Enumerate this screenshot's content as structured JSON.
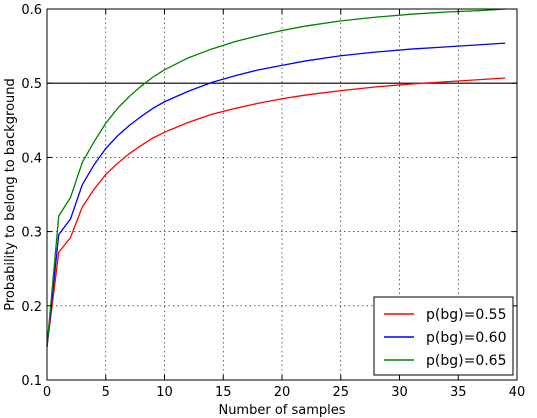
{
  "chart_data": {
    "type": "line",
    "xlabel": "Number of samples",
    "ylabel": "Probability to belong to background",
    "xlim": [
      0,
      40
    ],
    "ylim": [
      0.1,
      0.6
    ],
    "xticks": [
      "0",
      "5",
      "10",
      "15",
      "20",
      "25",
      "30",
      "35",
      "40"
    ],
    "yticks": [
      "0.1",
      "0.2",
      "0.3",
      "0.4",
      "0.5",
      "0.6"
    ],
    "grid": true,
    "legend_position": "bottom-right",
    "reference_line": {
      "y": 0.5,
      "color": "#000000"
    },
    "series": [
      {
        "name": "p(bg)=0.55",
        "color": "#ff0000",
        "x": [
          0,
          1,
          2,
          3,
          4,
          5,
          6,
          7,
          8,
          9,
          10,
          12,
          14,
          16,
          18,
          20,
          22,
          25,
          28,
          31,
          34,
          37,
          39
        ],
        "y": [
          0.145,
          0.272,
          0.292,
          0.333,
          0.357,
          0.377,
          0.392,
          0.405,
          0.416,
          0.426,
          0.434,
          0.447,
          0.458,
          0.466,
          0.473,
          0.479,
          0.484,
          0.49,
          0.495,
          0.499,
          0.502,
          0.505,
          0.507
        ]
      },
      {
        "name": "p(bg)=0.60",
        "color": "#0000ff",
        "x": [
          0,
          1,
          2,
          3,
          4,
          5,
          6,
          7,
          8,
          9,
          10,
          12,
          14,
          16,
          18,
          20,
          22,
          25,
          28,
          31,
          34,
          37,
          39
        ],
        "y": [
          0.145,
          0.296,
          0.317,
          0.363,
          0.39,
          0.412,
          0.429,
          0.443,
          0.455,
          0.466,
          0.475,
          0.489,
          0.501,
          0.51,
          0.518,
          0.524,
          0.53,
          0.537,
          0.542,
          0.546,
          0.549,
          0.552,
          0.554
        ]
      },
      {
        "name": "p(bg)=0.65",
        "color": "#008000",
        "x": [
          0,
          1,
          2,
          3,
          4,
          5,
          6,
          7,
          8,
          9,
          10,
          12,
          14,
          16,
          18,
          20,
          22,
          25,
          28,
          31,
          34,
          37,
          39
        ],
        "y": [
          0.145,
          0.321,
          0.346,
          0.393,
          0.421,
          0.446,
          0.466,
          0.482,
          0.496,
          0.508,
          0.518,
          0.534,
          0.546,
          0.556,
          0.564,
          0.571,
          0.577,
          0.584,
          0.589,
          0.593,
          0.596,
          0.598,
          0.6
        ]
      }
    ]
  }
}
